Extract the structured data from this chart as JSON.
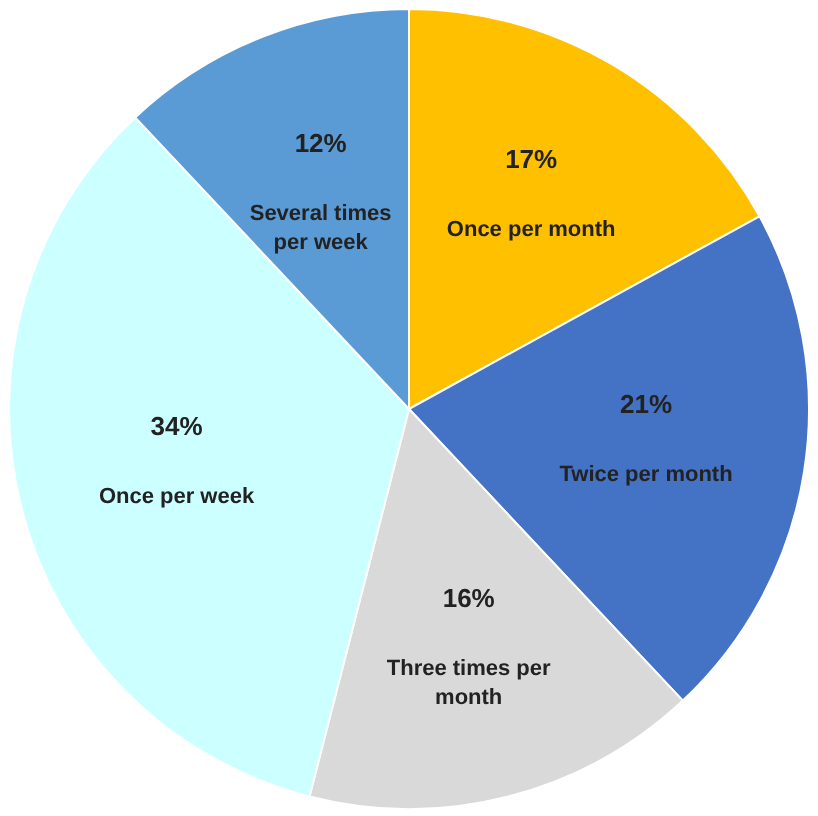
{
  "chart_data": {
    "type": "pie",
    "categories": [
      "Once per month",
      "Twice per month",
      "Three times per month",
      "Once per week",
      "Several times per week"
    ],
    "values": [
      17,
      21,
      16,
      34,
      12
    ],
    "value_labels": [
      "17%",
      "21%",
      "16%",
      "34%",
      "12%"
    ],
    "colors": [
      "#ffc000",
      "#4472c4",
      "#d9d9d9",
      "#ccffff",
      "#5b9bd5"
    ]
  }
}
